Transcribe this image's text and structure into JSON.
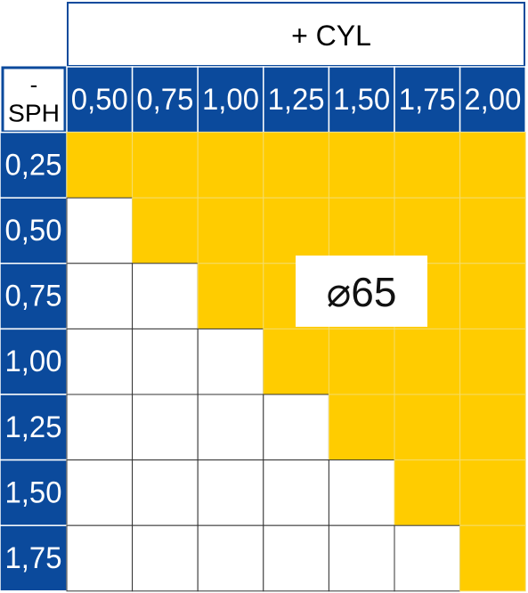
{
  "header": {
    "title": "+ CYL",
    "corner_top": "-",
    "corner_bottom": "SPH"
  },
  "columns": [
    "0,50",
    "0,75",
    "1,00",
    "1,25",
    "1,50",
    "1,75",
    "2,00"
  ],
  "rows": [
    {
      "label": "0,25",
      "filled": [
        true,
        true,
        true,
        true,
        true,
        true,
        true
      ]
    },
    {
      "label": "0,50",
      "filled": [
        false,
        true,
        true,
        true,
        true,
        true,
        true
      ]
    },
    {
      "label": "0,75",
      "filled": [
        false,
        false,
        true,
        true,
        true,
        true,
        true
      ]
    },
    {
      "label": "1,00",
      "filled": [
        false,
        false,
        false,
        true,
        true,
        true,
        true
      ]
    },
    {
      "label": "1,25",
      "filled": [
        false,
        false,
        false,
        false,
        true,
        true,
        true
      ]
    },
    {
      "label": "1,50",
      "filled": [
        false,
        false,
        false,
        false,
        false,
        true,
        true
      ]
    },
    {
      "label": "1,75",
      "filled": [
        false,
        false,
        false,
        false,
        false,
        false,
        true
      ]
    }
  ],
  "badge": "⌀65",
  "fill_color": "#ffcc00",
  "header_color": "#0b4a9c"
}
